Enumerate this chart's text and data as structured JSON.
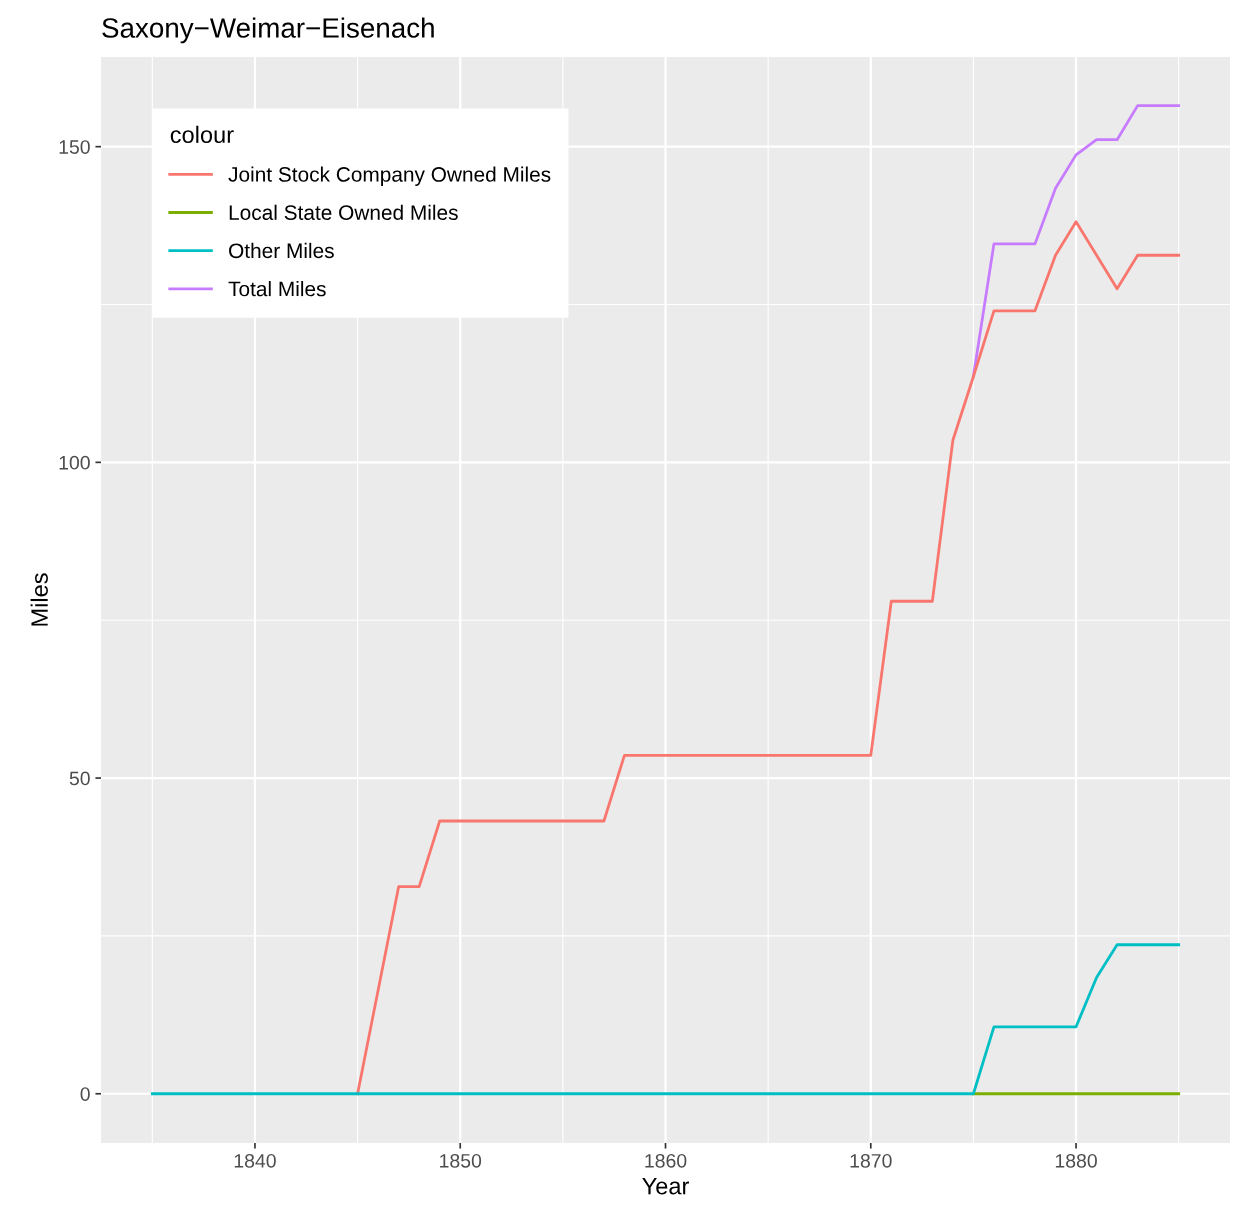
{
  "chart_data": {
    "type": "line",
    "title": "Saxony−Weimar−Eisenach",
    "xlabel": "Year",
    "ylabel": "Miles",
    "legend_title": "colour",
    "x": [
      1835,
      1836,
      1837,
      1838,
      1839,
      1840,
      1841,
      1842,
      1843,
      1844,
      1845,
      1846,
      1847,
      1848,
      1849,
      1850,
      1851,
      1852,
      1853,
      1854,
      1855,
      1856,
      1857,
      1858,
      1859,
      1860,
      1861,
      1862,
      1863,
      1864,
      1865,
      1866,
      1867,
      1868,
      1869,
      1870,
      1871,
      1872,
      1873,
      1874,
      1875,
      1876,
      1877,
      1878,
      1879,
      1880,
      1881,
      1882,
      1883,
      1884,
      1885
    ],
    "series": [
      {
        "name": "Joint Stock Company Owned Miles",
        "color": "#f8766d",
        "values": [
          null,
          null,
          null,
          null,
          null,
          null,
          null,
          null,
          null,
          null,
          0,
          16.4,
          32.8,
          32.8,
          43.2,
          43.2,
          43.2,
          43.2,
          43.2,
          43.2,
          43.2,
          43.2,
          43.2,
          53.6,
          53.6,
          53.6,
          53.6,
          53.6,
          53.6,
          53.6,
          53.6,
          53.6,
          53.6,
          53.6,
          53.6,
          53.6,
          78,
          78,
          78,
          103.5,
          113.6,
          124,
          124,
          124,
          132.8,
          138.1,
          132.8,
          127.5,
          132.8,
          132.8,
          132.8
        ]
      },
      {
        "name": "Local State Owned Miles",
        "color": "#7cae00",
        "values": [
          null,
          null,
          null,
          null,
          null,
          null,
          null,
          null,
          null,
          null,
          null,
          null,
          null,
          null,
          null,
          null,
          null,
          null,
          null,
          null,
          null,
          null,
          null,
          null,
          null,
          null,
          null,
          null,
          null,
          null,
          null,
          null,
          null,
          null,
          null,
          null,
          null,
          null,
          null,
          null,
          0,
          0,
          0,
          0,
          0,
          0,
          0,
          0,
          0,
          0,
          0
        ]
      },
      {
        "name": "Other Miles",
        "color": "#00bfc4",
        "values": [
          0,
          0,
          0,
          0,
          0,
          0,
          0,
          0,
          0,
          0,
          0,
          0,
          0,
          0,
          0,
          0,
          0,
          0,
          0,
          0,
          0,
          0,
          0,
          0,
          0,
          0,
          0,
          0,
          0,
          0,
          0,
          0,
          0,
          0,
          0,
          0,
          0,
          0,
          0,
          0,
          0,
          10.6,
          10.6,
          10.6,
          10.6,
          10.6,
          18.4,
          23.6,
          23.6,
          23.6,
          23.6
        ]
      },
      {
        "name": "Total Miles",
        "color": "#c77cff",
        "values": [
          null,
          null,
          null,
          null,
          null,
          null,
          null,
          null,
          null,
          null,
          null,
          null,
          null,
          null,
          null,
          null,
          null,
          null,
          null,
          null,
          null,
          null,
          null,
          null,
          null,
          null,
          null,
          null,
          null,
          null,
          null,
          null,
          null,
          null,
          null,
          null,
          null,
          null,
          null,
          null,
          113.6,
          134.6,
          134.6,
          134.6,
          143.4,
          148.7,
          151.1,
          151.1,
          156.5,
          156.5,
          156.5
        ]
      }
    ],
    "xlim": [
      1832.5,
      1887.5
    ],
    "ylim": [
      -7.8,
      164.2
    ],
    "xticks": [
      1840,
      1850,
      1860,
      1870,
      1880
    ],
    "yticks": [
      0,
      50,
      100,
      150
    ],
    "grid": true,
    "legend": "top left",
    "marker": "none",
    "line_style": "solid"
  }
}
